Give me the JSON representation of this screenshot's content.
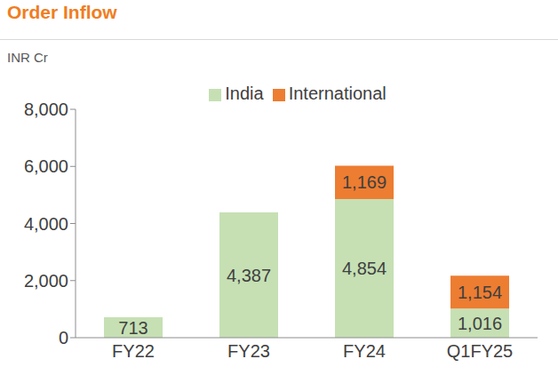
{
  "chart_data": {
    "type": "bar",
    "title": "Order Inflow",
    "ylabel": "INR Cr",
    "categories": [
      "FY22",
      "FY23",
      "FY24",
      "Q1FY25"
    ],
    "series": [
      {
        "name": "India",
        "color": "#c6e0b4",
        "values": [
          713,
          4387,
          4854,
          1016
        ],
        "value_labels": [
          "713",
          "4,387",
          "4,854",
          "1,016"
        ]
      },
      {
        "name": "International",
        "color": "#ed7d31",
        "values": [
          null,
          null,
          1169,
          1154
        ],
        "value_labels": [
          null,
          null,
          "1,169",
          "1,154"
        ]
      }
    ],
    "ylim": [
      0,
      8000
    ],
    "yticks": [
      0,
      {
        "value": 2000,
        "label": "2,000"
      },
      {
        "value": 4000,
        "label": "4,000"
      },
      {
        "value": 6000,
        "label": "6,000"
      },
      {
        "value": 8000,
        "label": "8,000"
      }
    ],
    "stacked": true,
    "data_labels": true,
    "grid": false,
    "legend": "top"
  }
}
